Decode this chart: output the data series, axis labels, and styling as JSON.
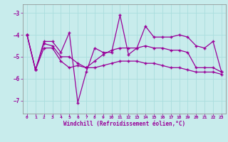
{
  "xlabel": "Windchill (Refroidissement éolien,°C)",
  "background_color": "#c8ecec",
  "line_color": "#990099",
  "grid_color": "#aadddd",
  "xlim": [
    -0.5,
    23.5
  ],
  "ylim": [
    -7.6,
    -2.6
  ],
  "yticks": [
    -7,
    -6,
    -5,
    -4,
    -3
  ],
  "xticks": [
    0,
    1,
    2,
    3,
    4,
    5,
    6,
    7,
    8,
    9,
    10,
    11,
    12,
    13,
    14,
    15,
    16,
    17,
    18,
    19,
    20,
    21,
    22,
    23
  ],
  "line1_x": [
    0,
    1,
    2,
    3,
    4,
    5,
    6,
    7,
    8,
    9,
    10,
    11,
    12,
    13,
    14,
    15,
    16,
    17,
    18,
    19,
    20,
    21,
    22,
    23
  ],
  "line1_y": [
    -4.0,
    -5.6,
    -4.3,
    -4.3,
    -4.8,
    -3.9,
    -7.1,
    -5.7,
    -4.6,
    -4.8,
    -4.8,
    -3.1,
    -4.9,
    -4.6,
    -3.6,
    -4.1,
    -4.1,
    -4.1,
    -4.0,
    -4.1,
    -4.5,
    -4.6,
    -4.3,
    -5.7
  ],
  "line2_x": [
    0,
    1,
    2,
    3,
    4,
    5,
    6,
    7,
    8,
    9,
    10,
    11,
    12,
    13,
    14,
    15,
    16,
    17,
    18,
    19,
    20,
    21,
    22,
    23
  ],
  "line2_y": [
    -4.0,
    -5.6,
    -4.4,
    -4.5,
    -5.0,
    -5.0,
    -5.3,
    -5.5,
    -5.2,
    -4.9,
    -4.7,
    -4.6,
    -4.6,
    -4.6,
    -4.5,
    -4.6,
    -4.6,
    -4.7,
    -4.7,
    -4.8,
    -5.5,
    -5.5,
    -5.5,
    -5.7
  ],
  "line3_x": [
    0,
    1,
    2,
    3,
    4,
    5,
    6,
    7,
    8,
    9,
    10,
    11,
    12,
    13,
    14,
    15,
    16,
    17,
    18,
    19,
    20,
    21,
    22,
    23
  ],
  "line3_y": [
    -4.0,
    -5.6,
    -4.6,
    -4.6,
    -5.2,
    -5.5,
    -5.4,
    -5.5,
    -5.5,
    -5.4,
    -5.3,
    -5.2,
    -5.2,
    -5.2,
    -5.3,
    -5.3,
    -5.4,
    -5.5,
    -5.5,
    -5.6,
    -5.7,
    -5.7,
    -5.7,
    -5.8
  ]
}
